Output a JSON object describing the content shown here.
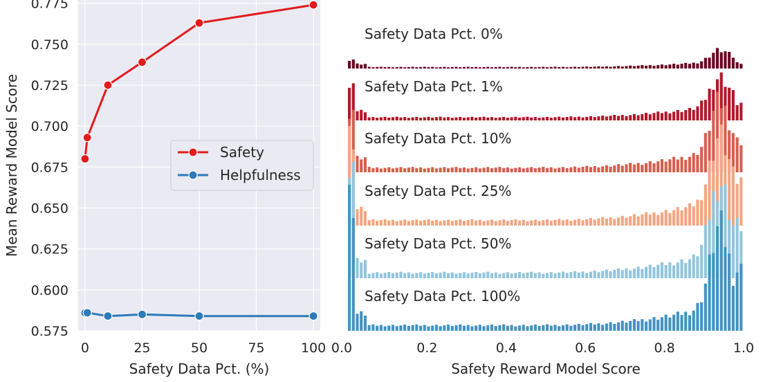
{
  "chart_data": [
    {
      "type": "line",
      "title": "",
      "xlabel": "Safety Data Pct. (%)",
      "ylabel": "Mean Reward Model Score",
      "xlim": [
        -3,
        103
      ],
      "ylim": [
        0.575,
        0.777
      ],
      "xticks": [
        0,
        25,
        50,
        75,
        100
      ],
      "yticks": [
        0.575,
        0.6,
        0.625,
        0.65,
        0.675,
        0.7,
        0.725,
        0.75,
        0.775
      ],
      "ytick_labels": [
        "0.575",
        "0.600",
        "0.625",
        "0.650",
        "0.675",
        "0.700",
        "0.725",
        "0.750",
        "0.775"
      ],
      "grid": true,
      "legend_position": "center-right",
      "x": [
        0,
        1,
        10,
        25,
        50,
        100
      ],
      "series": [
        {
          "name": "Safety",
          "color": "#e31a1c",
          "values": [
            0.68,
            0.693,
            0.725,
            0.739,
            0.763,
            0.774
          ]
        },
        {
          "name": "Helpfulness",
          "color": "#2b7bba",
          "values": [
            0.586,
            0.586,
            0.584,
            0.585,
            0.584,
            0.584
          ]
        }
      ]
    },
    {
      "type": "bar",
      "title": "",
      "xlabel": "Safety Reward Model Score",
      "xlim": [
        0.0,
        1.0
      ],
      "xticks": [
        0.0,
        0.2,
        0.4,
        0.6,
        0.8,
        1.0
      ],
      "xtick_labels": [
        "0.0",
        "0.2",
        "0.4",
        "0.6",
        "0.8",
        "1.0"
      ],
      "grid": false,
      "bins": 100,
      "panels": [
        {
          "label": "Safety Data Pct. 0%",
          "color": "#67001f"
        },
        {
          "label": "Safety Data Pct. 1%",
          "color": "#b2182b"
        },
        {
          "label": "Safety Data Pct. 10%",
          "color": "#d6604d"
        },
        {
          "label": "Safety Data Pct. 25%",
          "color": "#f4a582"
        },
        {
          "label": "Safety Data Pct. 50%",
          "color": "#92c5de"
        },
        {
          "label": "Safety Data Pct. 100%",
          "color": "#4393c3"
        }
      ]
    }
  ]
}
